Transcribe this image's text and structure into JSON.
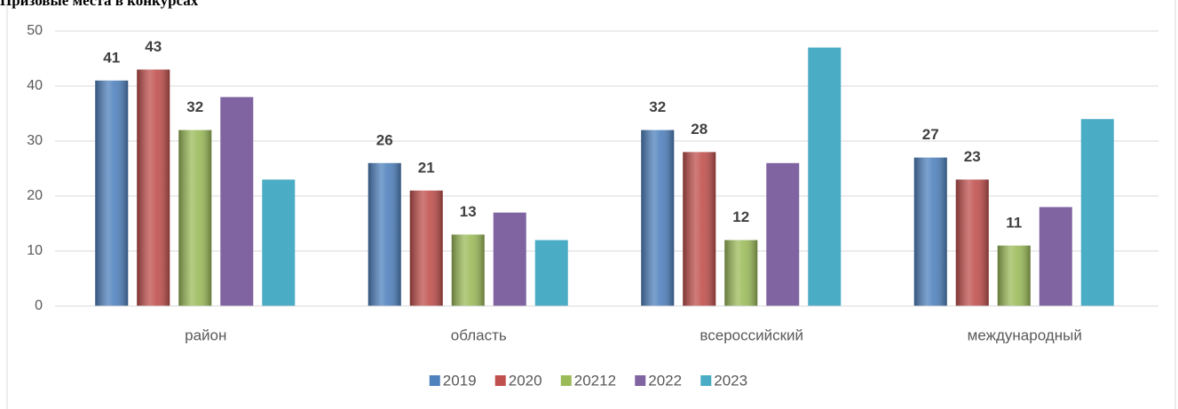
{
  "chart_data": {
    "type": "bar",
    "title": "Призовые места в конкурсах",
    "categories": [
      "район",
      "область",
      "всероссийский",
      "международный"
    ],
    "series": [
      {
        "name": "2019",
        "color": "#4f81bd",
        "values": [
          41,
          26,
          32,
          27
        ],
        "data_labels": true
      },
      {
        "name": "2020",
        "color": "#c0504d",
        "values": [
          43,
          21,
          28,
          23
        ],
        "data_labels": true
      },
      {
        "name": "20212",
        "color": "#9bbb59",
        "values": [
          32,
          13,
          12,
          11
        ],
        "data_labels": true
      },
      {
        "name": "2022",
        "color": "#8064a2",
        "values": [
          38,
          17,
          26,
          18
        ],
        "data_labels": false
      },
      {
        "name": "2023",
        "color": "#4bacc6",
        "values": [
          23,
          12,
          47,
          34
        ],
        "data_labels": false
      }
    ],
    "ylim": [
      0,
      50
    ],
    "yticks": [
      0,
      10,
      20,
      30,
      40,
      50
    ],
    "grid": true,
    "legend": "bottom"
  }
}
